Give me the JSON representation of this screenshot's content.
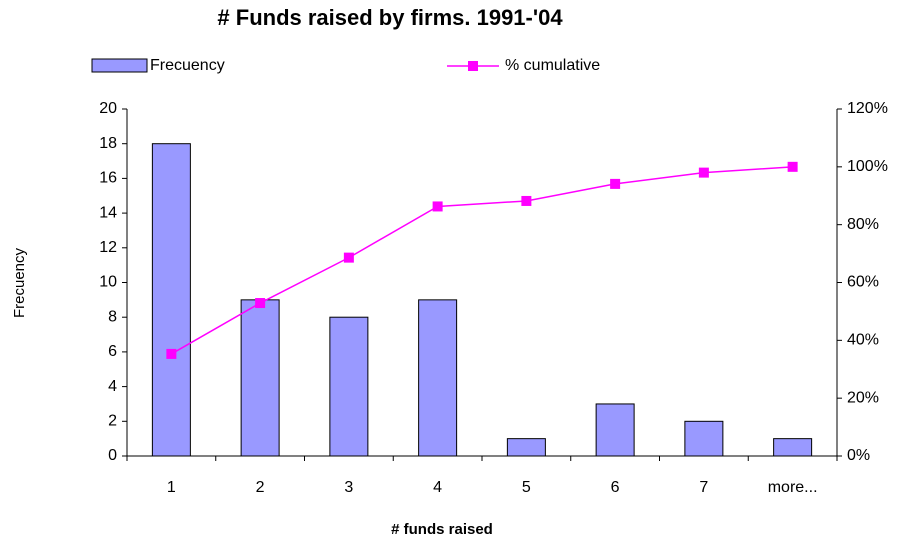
{
  "chart_data": {
    "type": "bar",
    "title": "# Funds raised by firms. 1991-'04",
    "x_label": "# funds raised",
    "y_label": "Frecuency",
    "categories": [
      "1",
      "2",
      "3",
      "4",
      "5",
      "6",
      "7",
      "more..."
    ],
    "series": [
      {
        "name": "Frecuency",
        "color": "#9999ff",
        "values": [
          18,
          9,
          8,
          9,
          1,
          3,
          2,
          1
        ]
      },
      {
        "name": "% cumulative",
        "color": "#ff00ff",
        "type": "line",
        "axis": "y2",
        "values": [
          35.3,
          52.9,
          68.6,
          86.3,
          88.2,
          94.1,
          98.0,
          100
        ]
      }
    ],
    "ylim": [
      0,
      20
    ],
    "yticks": [
      0,
      2,
      4,
      6,
      8,
      10,
      12,
      14,
      16,
      18,
      20
    ],
    "y2lim": [
      0,
      120
    ],
    "y2ticks": [
      {
        "value": 0,
        "label": "0%"
      },
      {
        "value": 20,
        "label": "20%"
      },
      {
        "value": 40,
        "label": "40%"
      },
      {
        "value": 60,
        "label": "60%"
      },
      {
        "value": 80,
        "label": "80%"
      },
      {
        "value": 100,
        "label": "100%"
      },
      {
        "value": 120,
        "label": "120%"
      }
    ],
    "grid": false
  }
}
